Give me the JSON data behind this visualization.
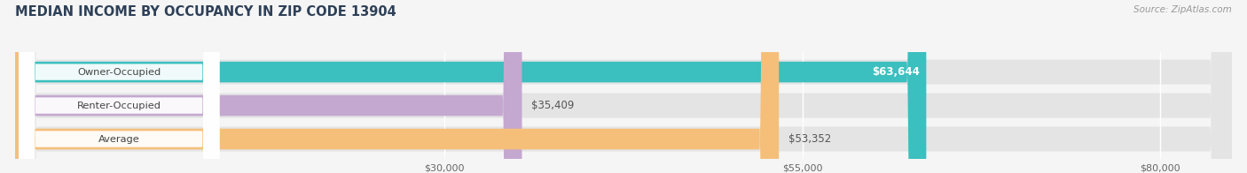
{
  "title": "MEDIAN INCOME BY OCCUPANCY IN ZIP CODE 13904",
  "source_text": "Source: ZipAtlas.com",
  "categories": [
    "Owner-Occupied",
    "Renter-Occupied",
    "Average"
  ],
  "values": [
    63644,
    35409,
    53352
  ],
  "bar_colors": [
    "#3bbfbf",
    "#c4a8d0",
    "#f5bf7a"
  ],
  "value_labels": [
    "$63,644",
    "$35,409",
    "$53,352"
  ],
  "value_label_inside": [
    true,
    false,
    false
  ],
  "xmin": 0,
  "xmax": 85000,
  "xticks": [
    30000,
    55000,
    80000
  ],
  "xtick_labels": [
    "$30,000",
    "$55,000",
    "$80,000"
  ],
  "title_fontsize": 10.5,
  "bar_height": 0.62,
  "background_color": "#f5f5f5",
  "bar_bg_color": "#ebebeb",
  "row_bg_color": "#ebebeb",
  "label_box_color": "#ffffff",
  "grid_color": "#ffffff",
  "text_color": "#666666",
  "title_color": "#2e4057"
}
